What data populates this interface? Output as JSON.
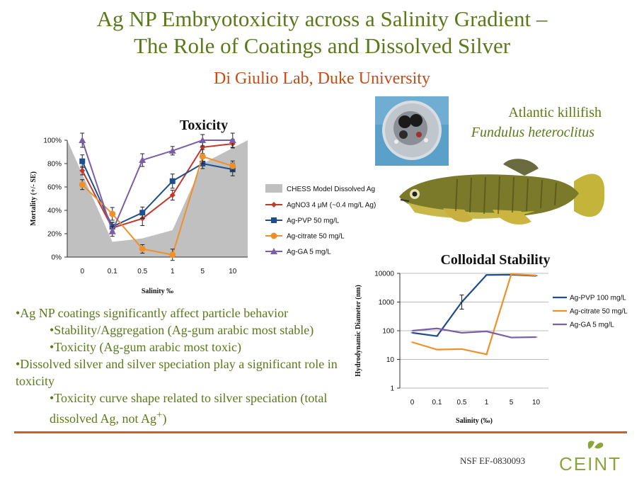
{
  "slide": {
    "title_line1": "Ag NP Embryotoxicity across a Salinity Gradient –",
    "title_line2": "The Role of Coatings and Dissolved Silver",
    "subtitle": "Di Giulio Lab, Duke University",
    "fish_common_name": "Atlantic killifish",
    "fish_scientific_name": "Fundulus heteroclitus",
    "grant": "NSF EF-0830093",
    "logo_text": "CEINT",
    "colors": {
      "title": "#5a7a1a",
      "subtitle": "#cc4a12",
      "divider": "#d06020"
    }
  },
  "bullets": {
    "b1": "•Ag NP coatings significantly affect particle behavior",
    "b1a": "•Stability/Aggregation (Ag-gum arabic most stable)",
    "b1b": "•Toxicity (Ag-gum arabic most toxic)",
    "b2": "•Dissolved silver and silver speciation play a significant role in toxicity",
    "b2a_pre": "•Toxicity curve shape related to silver speciation (total dissolved Ag, not Ag",
    "b2a_sup": "+",
    "b2a_post": ")"
  },
  "chart_data": [
    {
      "type": "line",
      "title": "Toxicity",
      "xlabel": "Salinity ‰",
      "ylabel": "Mortality (+/- SE)",
      "categories": [
        "0",
        "0.1",
        "0.5",
        "1",
        "5",
        "10"
      ],
      "yticks": [
        "0%",
        "20%",
        "40%",
        "60%",
        "80%",
        "100%"
      ],
      "ylim": [
        0,
        100
      ],
      "legend_position": "right",
      "area": {
        "name": "CHESS Model Dissolved Ag",
        "values": [
          100,
          13,
          16,
          23,
          80,
          100
        ],
        "color": "#c0c0c0"
      },
      "series": [
        {
          "name": "AgNO3 4 μM (~0.4 mg/L Ag)",
          "color": "#c0392b",
          "marker": "diamond",
          "values": [
            74,
            25,
            33,
            53,
            94,
            97
          ]
        },
        {
          "name": "Ag-PVP 50 mg/L",
          "color": "#1f4e8c",
          "marker": "square",
          "values": [
            82,
            26,
            38,
            65,
            80,
            75
          ]
        },
        {
          "name": "Ag-citrate 50 mg/L",
          "color": "#f0902a",
          "marker": "circle",
          "values": [
            62,
            37,
            7,
            2,
            86,
            78
          ]
        },
        {
          "name": "Ag-GA 5 mg/L",
          "color": "#7b5ea7",
          "marker": "triangle",
          "values": [
            100,
            22,
            83,
            91,
            100,
            100
          ]
        }
      ]
    },
    {
      "type": "line",
      "title": "Colloidal Stability",
      "xlabel": "Salinity (‰)",
      "ylabel": "Hydrodynamic Diameter (nm)",
      "categories": [
        "0",
        "0.1",
        "0.5",
        "1",
        "5",
        "10"
      ],
      "yticks": [
        "1",
        "10",
        "100",
        "1000",
        "10000"
      ],
      "y_scale": "log",
      "ylim": [
        1,
        10000
      ],
      "legend_position": "right",
      "series": [
        {
          "name": "Ag-PVP 100 mg/L",
          "color": "#1f4e8c",
          "values": [
            85,
            65,
            1000,
            8800,
            9000,
            8200
          ]
        },
        {
          "name": "Ag-citrate 50 mg/L",
          "color": "#f0902a",
          "values": [
            40,
            22,
            23,
            15,
            9500,
            8500
          ]
        },
        {
          "name": "Ag-GA 5 mg/L",
          "color": "#7b5ea7",
          "values": [
            100,
            120,
            85,
            95,
            58,
            60
          ]
        }
      ]
    }
  ]
}
